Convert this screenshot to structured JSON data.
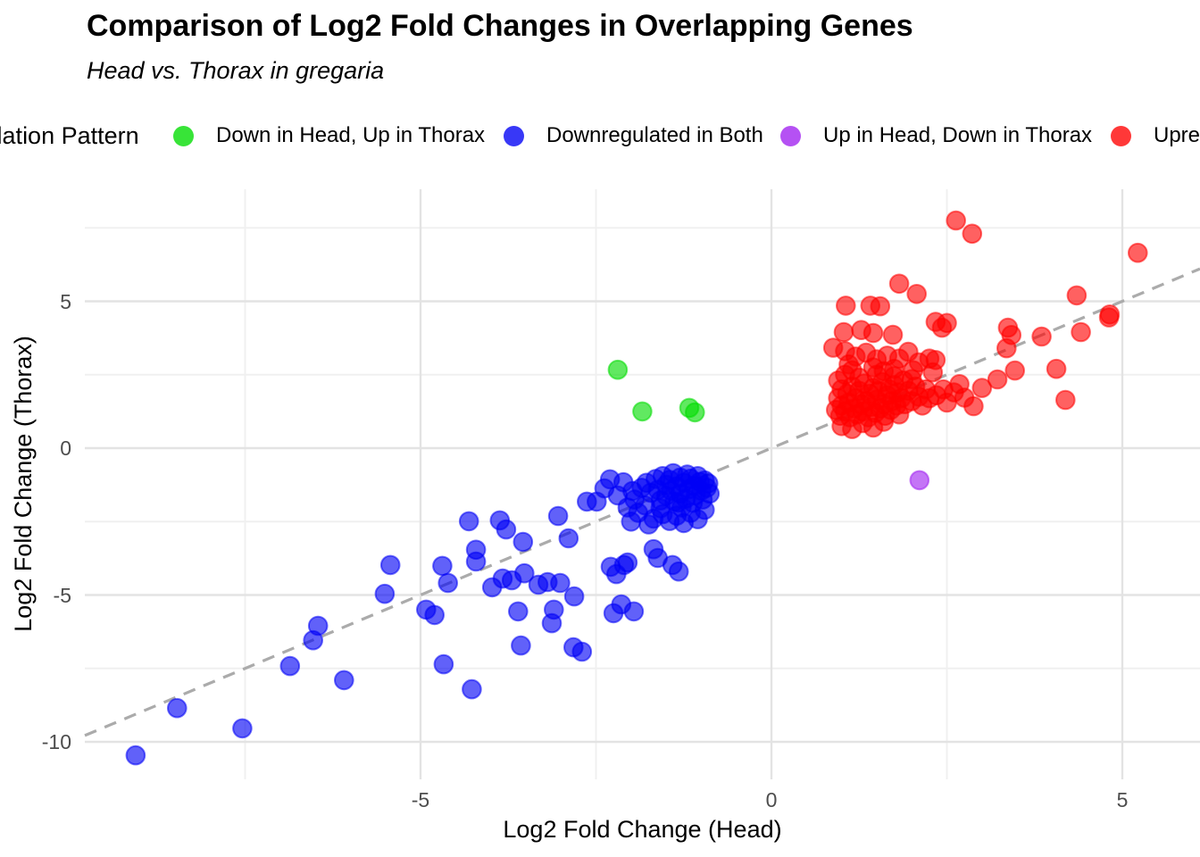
{
  "header": {
    "title": "Comparison of Log2 Fold Changes in Overlapping Genes",
    "subtitle": "Head vs. Thorax in gregaria"
  },
  "legend": {
    "title": "Regulation Pattern",
    "items": [
      {
        "label": "Down in Head, Up in Thorax",
        "color": "#00DC00"
      },
      {
        "label": "Downregulated in Both",
        "color": "#0000F5"
      },
      {
        "label": "Up in Head, Down in Thorax",
        "color": "#A020F0"
      },
      {
        "label": "Upregulated in Both",
        "color": "#FF0000"
      }
    ]
  },
  "chart_data": {
    "type": "scatter",
    "title": "Comparison of Log2 Fold Changes in Overlapping Genes",
    "subtitle": "Head vs. Thorax in gregaria",
    "xlabel": "Log2 Fold Change (Head)",
    "ylabel": "Log2 Fold Change (Thorax)",
    "xlim": [
      -9.8,
      6.1
    ],
    "ylim": [
      -11.3,
      8.8
    ],
    "grid": true,
    "legend_position": "top",
    "point_alpha": 0.7,
    "x_ticks": [
      {
        "value": -5,
        "label": "-5"
      },
      {
        "value": 0,
        "label": "0"
      },
      {
        "value": 5,
        "label": "5"
      }
    ],
    "y_ticks": [
      {
        "value": 5,
        "label": "5"
      },
      {
        "value": 0,
        "label": "0"
      },
      {
        "value": -5,
        "label": "-5"
      },
      {
        "value": -10,
        "label": "-10"
      }
    ],
    "minor_x": [
      -7.5,
      -2.5,
      2.5
    ],
    "minor_y": [
      7.5,
      2.5,
      -2.5,
      -7.5
    ],
    "reference_line": {
      "style": "dashed",
      "slope": 1,
      "intercept": 0,
      "color": "#ABABAB"
    },
    "series": [
      {
        "name": "Down in Head, Up in Thorax",
        "color": "#00DC00",
        "points": [
          [
            -2.19,
            2.67
          ],
          [
            -1.84,
            1.25
          ],
          [
            -1.17,
            1.37
          ],
          [
            -1.09,
            1.22
          ]
        ]
      },
      {
        "name": "Downregulated in Both",
        "color": "#0000F5",
        "points": [
          [
            -9.06,
            -10.46
          ],
          [
            -8.47,
            -8.85
          ],
          [
            -7.54,
            -9.54
          ],
          [
            -6.86,
            -7.42
          ],
          [
            -6.53,
            -6.54
          ],
          [
            -6.46,
            -6.05
          ],
          [
            -6.09,
            -7.9
          ],
          [
            -5.51,
            -4.96
          ],
          [
            -5.43,
            -3.98
          ],
          [
            -4.92,
            -5.5
          ],
          [
            -4.8,
            -5.68
          ],
          [
            -4.69,
            -4.01
          ],
          [
            -4.61,
            -4.59
          ],
          [
            -4.67,
            -7.36
          ],
          [
            -4.27,
            -8.21
          ],
          [
            -4.31,
            -2.49
          ],
          [
            -4.21,
            -3.46
          ],
          [
            -4.21,
            -3.86
          ],
          [
            -3.98,
            -4.74
          ],
          [
            -3.87,
            -2.46
          ],
          [
            -3.83,
            -4.44
          ],
          [
            -3.78,
            -2.77
          ],
          [
            -3.7,
            -4.5
          ],
          [
            -3.61,
            -5.56
          ],
          [
            -3.57,
            -6.72
          ],
          [
            -3.54,
            -3.19
          ],
          [
            -3.52,
            -4.26
          ],
          [
            -3.32,
            -4.65
          ],
          [
            -3.19,
            -4.56
          ],
          [
            -3.13,
            -5.96
          ],
          [
            -3.1,
            -5.5
          ],
          [
            -3.04,
            -2.31
          ],
          [
            -3.01,
            -4.59
          ],
          [
            -2.89,
            -3.07
          ],
          [
            -2.82,
            -6.78
          ],
          [
            -2.81,
            -5.05
          ],
          [
            -2.7,
            -6.93
          ],
          [
            -2.63,
            -1.82
          ],
          [
            -2.49,
            -1.82
          ],
          [
            -2.38,
            -1.37
          ],
          [
            -2.3,
            -1.06
          ],
          [
            -2.29,
            -4.04
          ],
          [
            -2.25,
            -5.62
          ],
          [
            -2.21,
            -4.29
          ],
          [
            -2.19,
            -1.61
          ],
          [
            -2.14,
            -5.32
          ],
          [
            -2.11,
            -1.16
          ],
          [
            -2.1,
            -3.98
          ],
          [
            -2.05,
            -3.89
          ],
          [
            -1.98,
            -1.46
          ],
          [
            -1.96,
            -5.56
          ],
          [
            -1.68,
            -3.44
          ],
          [
            -1.62,
            -3.74
          ],
          [
            -1.41,
            -3.98
          ],
          [
            -1.32,
            -4.2
          ],
          [
            -2.05,
            -2.02
          ],
          [
            -2.0,
            -2.5
          ],
          [
            -1.95,
            -1.75
          ],
          [
            -1.9,
            -2.2
          ],
          [
            -1.85,
            -1.35
          ],
          [
            -1.8,
            -1.95
          ],
          [
            -1.78,
            -1.18
          ],
          [
            -1.75,
            -2.6
          ],
          [
            -1.72,
            -1.52
          ],
          [
            -1.68,
            -2.4
          ],
          [
            -1.65,
            -1.05
          ],
          [
            -1.62,
            -1.42
          ],
          [
            -1.58,
            -2.05
          ],
          [
            -1.58,
            -1.78
          ],
          [
            -1.55,
            -2.25
          ],
          [
            -1.55,
            -0.95
          ],
          [
            -1.5,
            -1.25
          ],
          [
            -1.5,
            -1.62
          ],
          [
            -1.45,
            -2.48
          ],
          [
            -1.45,
            -1.08
          ],
          [
            -1.43,
            -1.45
          ],
          [
            -1.4,
            -0.85
          ],
          [
            -1.38,
            -1.82
          ],
          [
            -1.35,
            -2.3
          ],
          [
            -1.35,
            -1.3
          ],
          [
            -1.33,
            -1.85
          ],
          [
            -1.3,
            -1.0
          ],
          [
            -1.3,
            -1.55
          ],
          [
            -1.28,
            -2.02
          ],
          [
            -1.25,
            -2.55
          ],
          [
            -1.25,
            -1.18
          ],
          [
            -1.22,
            -1.72
          ],
          [
            -1.2,
            -0.9
          ],
          [
            -1.18,
            -1.4
          ],
          [
            -1.15,
            -2.2
          ],
          [
            -1.15,
            -1.04
          ],
          [
            -1.12,
            -1.86
          ],
          [
            -1.1,
            -1.28
          ],
          [
            -1.08,
            -1.6
          ],
          [
            -1.05,
            -2.42
          ],
          [
            -1.05,
            -0.95
          ],
          [
            -1.02,
            -1.15
          ],
          [
            -1.0,
            -1.45
          ],
          [
            -0.98,
            -1.75
          ],
          [
            -0.95,
            -2.1
          ],
          [
            -0.95,
            -1.1
          ],
          [
            -0.92,
            -1.35
          ],
          [
            -0.9,
            -1.2
          ],
          [
            -0.88,
            -1.55
          ]
        ]
      },
      {
        "name": "Up in Head, Down in Thorax",
        "color": "#A020F0",
        "points": [
          [
            2.11,
            -1.09
          ]
        ]
      },
      {
        "name": "Upregulated in Both",
        "color": "#FF0000",
        "points": [
          [
            2.63,
            7.75
          ],
          [
            2.86,
            7.3
          ],
          [
            5.22,
            6.65
          ],
          [
            1.82,
            5.6
          ],
          [
            2.07,
            5.25
          ],
          [
            4.35,
            5.2
          ],
          [
            1.06,
            4.85
          ],
          [
            1.41,
            4.85
          ],
          [
            1.55,
            4.83
          ],
          [
            4.82,
            4.55
          ],
          [
            2.5,
            4.26
          ],
          [
            2.34,
            4.3
          ],
          [
            2.43,
            4.1
          ],
          [
            3.37,
            4.1
          ],
          [
            3.42,
            3.85
          ],
          [
            3.85,
            3.8
          ],
          [
            4.41,
            3.95
          ],
          [
            4.81,
            4.45
          ],
          [
            1.03,
            3.95
          ],
          [
            1.28,
            4.02
          ],
          [
            1.45,
            3.92
          ],
          [
            1.73,
            3.86
          ],
          [
            3.35,
            3.4
          ],
          [
            4.06,
            2.7
          ],
          [
            4.19,
            1.64
          ],
          [
            3.22,
            2.34
          ],
          [
            3.47,
            2.64
          ],
          [
            2.88,
            1.43
          ],
          [
            0.88,
            3.42
          ],
          [
            1.05,
            3.3
          ],
          [
            1.2,
            3.12
          ],
          [
            1.35,
            3.25
          ],
          [
            1.5,
            3.02
          ],
          [
            1.65,
            3.15
          ],
          [
            1.82,
            3.05
          ],
          [
            1.95,
            3.28
          ],
          [
            2.1,
            2.92
          ],
          [
            2.25,
            3.05
          ],
          [
            1.1,
            2.85
          ],
          [
            1.45,
            2.75
          ],
          [
            1.75,
            2.7
          ],
          [
            2.02,
            2.65
          ],
          [
            2.3,
            2.58
          ],
          [
            2.34,
            3.0
          ],
          [
            0.92,
            1.3
          ],
          [
            0.95,
            1.7
          ],
          [
            0.98,
            1.1
          ],
          [
            1.0,
            2.0
          ],
          [
            1.0,
            1.45
          ],
          [
            1.05,
            1.25
          ],
          [
            1.08,
            1.85
          ],
          [
            1.1,
            1.55
          ],
          [
            1.12,
            1.05
          ],
          [
            1.15,
            2.1
          ],
          [
            1.18,
            1.35
          ],
          [
            1.2,
            1.7
          ],
          [
            1.22,
            1.15
          ],
          [
            1.25,
            1.95
          ],
          [
            1.28,
            1.5
          ],
          [
            1.3,
            1.25
          ],
          [
            1.32,
            2.2
          ],
          [
            1.35,
            1.6
          ],
          [
            1.38,
            1.05
          ],
          [
            1.4,
            1.85
          ],
          [
            1.42,
            1.4
          ],
          [
            1.45,
            2.05
          ],
          [
            1.48,
            1.2
          ],
          [
            1.5,
            1.65
          ],
          [
            1.52,
            1.95
          ],
          [
            1.55,
            1.35
          ],
          [
            1.58,
            2.25
          ],
          [
            1.6,
            1.5
          ],
          [
            1.62,
            1.1
          ],
          [
            1.65,
            1.8
          ],
          [
            1.68,
            2.0
          ],
          [
            1.7,
            1.3
          ],
          [
            1.72,
            1.6
          ],
          [
            1.75,
            2.15
          ],
          [
            1.78,
            1.45
          ],
          [
            1.8,
            1.9
          ],
          [
            1.82,
            1.15
          ],
          [
            1.85,
            1.7
          ],
          [
            1.88,
            2.3
          ],
          [
            1.9,
            1.5
          ],
          [
            1.95,
            1.95
          ],
          [
            2.0,
            1.6
          ],
          [
            2.05,
            2.1
          ],
          [
            2.1,
            1.75
          ],
          [
            2.15,
            1.45
          ],
          [
            2.2,
            2.0
          ],
          [
            2.25,
            1.7
          ],
          [
            0.95,
            2.3
          ],
          [
            1.05,
            2.5
          ],
          [
            1.25,
            2.4
          ],
          [
            1.5,
            2.5
          ],
          [
            1.75,
            2.45
          ],
          [
            2.0,
            2.35
          ],
          [
            1.15,
            2.65
          ],
          [
            1.6,
            2.62
          ],
          [
            1.0,
            0.75
          ],
          [
            1.3,
            0.85
          ],
          [
            1.6,
            0.9
          ],
          [
            1.15,
            0.65
          ],
          [
            1.45,
            0.7
          ],
          [
            2.35,
            1.8
          ],
          [
            2.45,
            2.0
          ],
          [
            2.5,
            1.55
          ],
          [
            2.6,
            1.9
          ],
          [
            2.68,
            2.18
          ],
          [
            2.75,
            1.72
          ],
          [
            3.0,
            2.05
          ]
        ]
      }
    ]
  }
}
